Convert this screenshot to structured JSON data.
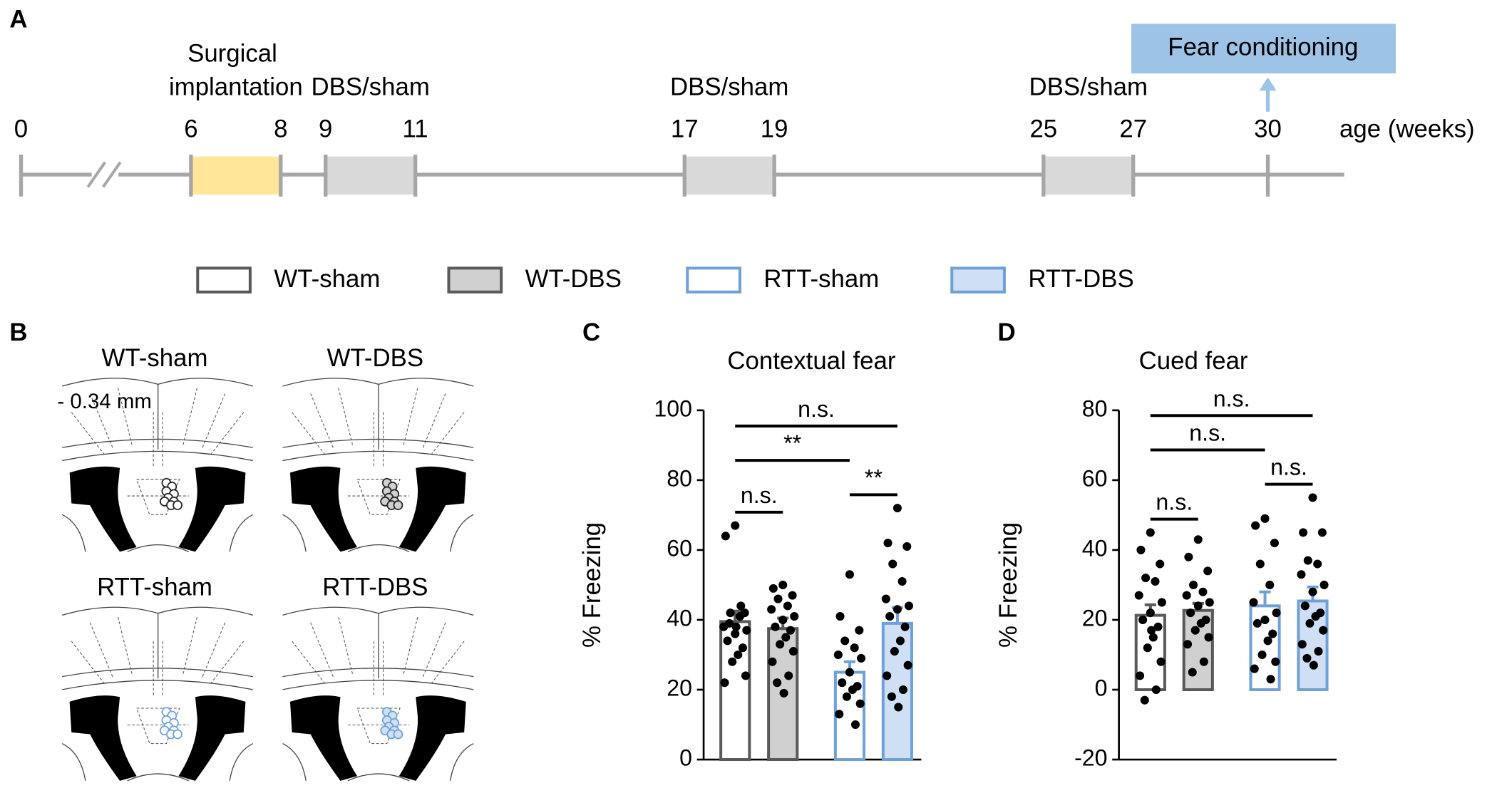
{
  "panel_labels": {
    "a": "A",
    "b": "B",
    "c": "C",
    "d": "D"
  },
  "timeline": {
    "ticks": [
      0,
      6,
      8,
      9,
      11,
      17,
      19,
      25,
      27,
      30
    ],
    "axis_label": "age (weeks)",
    "periods": [
      {
        "label": "Surgical implantation",
        "from": 6,
        "to": 8,
        "color": "#ffe699"
      },
      {
        "label": "DBS/sham",
        "from": 9,
        "to": 11,
        "color": "#d9d9d9"
      },
      {
        "label": "DBS/sham",
        "from": 17,
        "to": 19,
        "color": "#d9d9d9"
      },
      {
        "label": "DBS/sham",
        "from": 25,
        "to": 27,
        "color": "#d9d9d9"
      }
    ],
    "event": {
      "label": "Fear conditioning",
      "at": 30,
      "color": "#9dc3e6"
    }
  },
  "groups": [
    {
      "name": "WT-sham",
      "edge": "#595959",
      "fill": "#ffffff"
    },
    {
      "name": "WT-DBS",
      "edge": "#595959",
      "fill": "#d0d0d0"
    },
    {
      "name": "RTT-sham",
      "edge": "#6fa0d8",
      "fill": "#ffffff"
    },
    {
      "name": "RTT-DBS",
      "edge": "#6fa0d8",
      "fill": "#cfe0f5"
    }
  ],
  "placements": {
    "titles": [
      "WT-sham",
      "WT-DBS",
      "RTT-sham",
      "RTT-DBS"
    ],
    "coordinate": "- 0.34 mm"
  },
  "chart_data": [
    {
      "type": "bar",
      "title": "Contextual fear",
      "y_label": "% Freezing",
      "categories": [
        null,
        null,
        null,
        null
      ],
      "values": [
        39.5,
        37.5,
        25,
        39
      ],
      "errors": [
        3,
        3,
        3,
        4.5
      ],
      "points": [
        [
          67,
          64,
          42,
          42,
          41,
          38,
          37,
          36,
          34,
          32,
          30,
          28,
          24,
          22,
          44,
          39,
          38
        ],
        [
          50,
          49,
          47,
          46,
          44,
          43,
          41,
          40,
          38,
          37,
          35,
          33,
          31,
          28,
          24,
          22,
          19
        ],
        [
          53,
          41,
          37,
          34,
          32,
          30,
          29,
          25,
          22,
          21,
          20,
          18,
          16,
          13,
          10
        ],
        [
          72,
          62,
          61,
          56,
          51,
          46,
          44,
          43,
          41,
          38,
          34,
          31,
          27,
          24,
          20,
          18,
          15
        ]
      ],
      "ylim": [
        0,
        100
      ],
      "yticks": [
        0,
        20,
        40,
        60,
        80,
        100
      ],
      "comparisons": [
        {
          "between": [
            0,
            1
          ],
          "label": "n.s."
        },
        {
          "between": [
            2,
            3
          ],
          "label": "**"
        },
        {
          "between": [
            0,
            2
          ],
          "label": "**"
        },
        {
          "between": [
            0,
            3
          ],
          "label": "n.s."
        }
      ]
    },
    {
      "type": "bar",
      "title": "Cued fear",
      "y_label": "% Freezing",
      "categories": [
        null,
        null,
        null,
        null
      ],
      "values": [
        21.3,
        22.7,
        24,
        25.4
      ],
      "errors": [
        3,
        2,
        4,
        4
      ],
      "points": [
        [
          45,
          40,
          36,
          32,
          31,
          27,
          25,
          22,
          20,
          18,
          15,
          12,
          8,
          4,
          0,
          -3,
          17
        ],
        [
          43,
          38,
          34,
          30,
          28,
          27,
          25,
          24,
          22,
          20,
          19,
          17,
          15,
          13,
          8,
          5
        ],
        [
          49,
          47,
          42,
          36,
          30,
          25,
          22,
          20,
          19,
          16,
          14,
          10,
          8,
          6,
          3
        ],
        [
          55,
          45,
          45,
          37,
          36,
          33,
          30,
          28,
          24,
          22,
          21,
          19,
          17,
          13,
          11,
          9,
          7
        ]
      ],
      "ylim": [
        -20,
        80
      ],
      "yticks": [
        -20,
        0,
        20,
        40,
        60,
        80
      ],
      "comparisons": [
        {
          "between": [
            0,
            1
          ],
          "label": "n.s."
        },
        {
          "between": [
            2,
            3
          ],
          "label": "n.s."
        },
        {
          "between": [
            0,
            2
          ],
          "label": "n.s."
        },
        {
          "between": [
            0,
            3
          ],
          "label": "n.s."
        }
      ]
    }
  ]
}
